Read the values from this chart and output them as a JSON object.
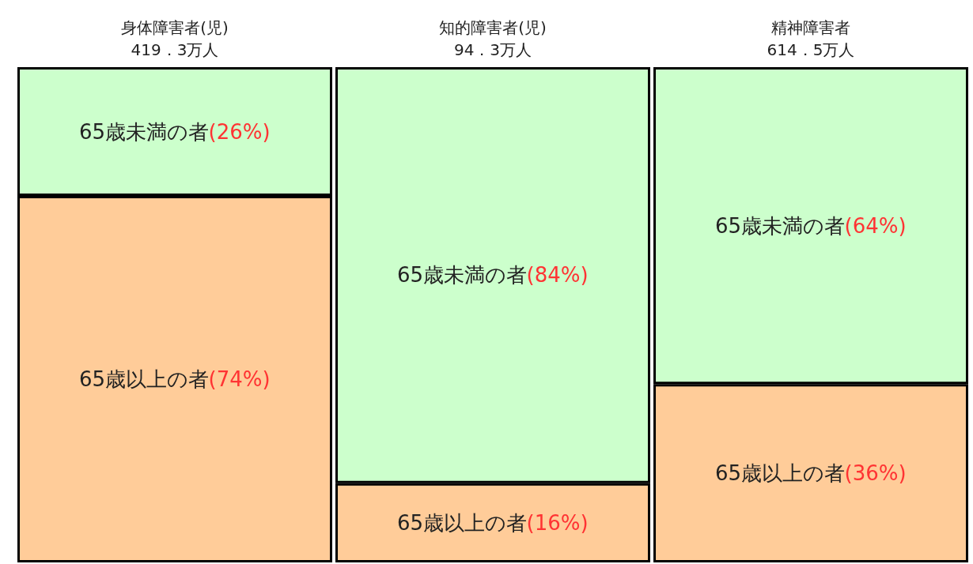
{
  "chart_data": {
    "type": "bar",
    "stacked": true,
    "categories": [
      "身体障害者(児)",
      "知的障害者(児)",
      "精神障害者"
    ],
    "totals": [
      "419．3万人",
      "94．3万人",
      "614．5万人"
    ],
    "series": [
      {
        "name": "65歳以上の者",
        "color": "#ffcc99",
        "values": [
          74,
          16,
          36
        ],
        "value_labels": [
          "(74%)",
          "(16%)",
          "(36%)"
        ]
      },
      {
        "name": "65歳未満の者",
        "color": "#ccffcc",
        "values": [
          26,
          84,
          64
        ],
        "value_labels": [
          "(26%)",
          "(84%)",
          "(64%)"
        ]
      }
    ]
  }
}
